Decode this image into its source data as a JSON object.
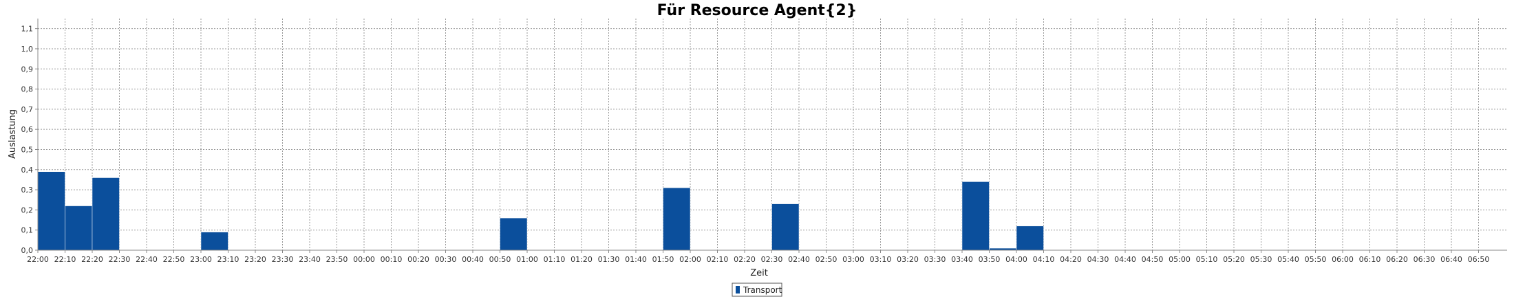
{
  "chart_data": {
    "type": "bar",
    "title": "Für Resource Agent{2}",
    "xlabel": "Zeit",
    "ylabel": "Auslastung",
    "ylim": [
      0,
      1.15
    ],
    "grid": true,
    "legend_position": "bottom-center",
    "x_ticks": [
      "22:00",
      "22:10",
      "22:20",
      "22:30",
      "22:40",
      "22:50",
      "23:00",
      "23:10",
      "23:20",
      "23:30",
      "23:40",
      "23:50",
      "00:00",
      "00:10",
      "00:20",
      "00:30",
      "00:40",
      "00:50",
      "01:00",
      "01:10",
      "01:20",
      "01:30",
      "01:40",
      "01:50",
      "02:00",
      "02:10",
      "02:20",
      "02:30",
      "02:40",
      "02:50",
      "03:00",
      "03:10",
      "03:20",
      "03:30",
      "03:40",
      "03:50",
      "04:00",
      "04:10",
      "04:20",
      "04:30",
      "04:40",
      "04:50",
      "05:00",
      "05:10",
      "05:20",
      "05:30",
      "05:40",
      "05:50",
      "06:00",
      "06:10",
      "06:20",
      "06:30",
      "06:40",
      "06:50"
    ],
    "y_ticks": [
      "0,0",
      "0,1",
      "0,2",
      "0,3",
      "0,4",
      "0,5",
      "0,6",
      "0,7",
      "0,8",
      "0,9",
      "1,0",
      "1,1"
    ],
    "series": [
      {
        "name": "Transport",
        "color": "#0b4f9c",
        "bars": [
          {
            "start": "22:00",
            "end": "22:10",
            "value": 0.39
          },
          {
            "start": "22:10",
            "end": "22:20",
            "value": 0.22
          },
          {
            "start": "22:20",
            "end": "22:30",
            "value": 0.36
          },
          {
            "start": "23:00",
            "end": "23:10",
            "value": 0.09
          },
          {
            "start": "00:50",
            "end": "01:00",
            "value": 0.16
          },
          {
            "start": "01:50",
            "end": "02:00",
            "value": 0.31
          },
          {
            "start": "02:30",
            "end": "02:40",
            "value": 0.23
          },
          {
            "start": "03:40",
            "end": "03:50",
            "value": 0.34
          },
          {
            "start": "03:50",
            "end": "04:00",
            "value": 0.01
          },
          {
            "start": "04:00",
            "end": "04:10",
            "value": 0.12
          }
        ]
      }
    ]
  }
}
